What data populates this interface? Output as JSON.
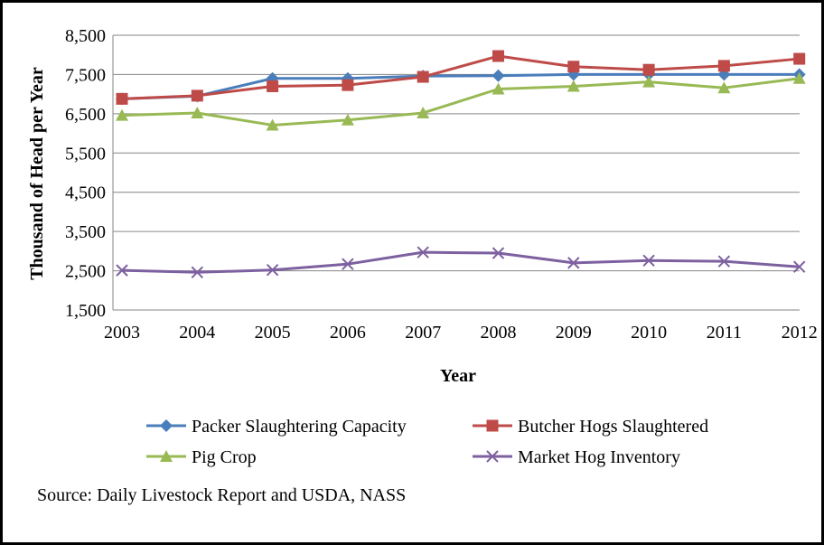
{
  "chart_data": {
    "type": "line",
    "title": "",
    "xlabel": "Year",
    "ylabel": "Thousand of Head per Year",
    "ylim": [
      1500,
      8500
    ],
    "yticks": [
      1500,
      2500,
      3500,
      4500,
      5500,
      6500,
      7500,
      8500
    ],
    "ytick_labels": [
      "1,500",
      "2,500",
      "3,500",
      "4,500",
      "5,500",
      "6,500",
      "7,500",
      "8,500"
    ],
    "x": [
      "2003",
      "2004",
      "2005",
      "2006",
      "2007",
      "2008",
      "2009",
      "2010",
      "2011",
      "2012"
    ],
    "grid": "horizontal",
    "legend_position": "bottom",
    "series": [
      {
        "name": "Packer Slaughtering Capacity",
        "color": "#4a7ebb",
        "marker": "diamond",
        "values": [
          6880,
          6950,
          7400,
          7400,
          7460,
          7470,
          7500,
          7500,
          7500,
          7500
        ]
      },
      {
        "name": "Butcher Hogs Slaughtered",
        "color": "#be4b48",
        "marker": "square",
        "values": [
          6880,
          6960,
          7200,
          7230,
          7440,
          7970,
          7700,
          7620,
          7720,
          7900
        ]
      },
      {
        "name": "Pig Crop",
        "color": "#98b954",
        "marker": "triangle",
        "values": [
          6460,
          6520,
          6210,
          6340,
          6520,
          7130,
          7200,
          7310,
          7160,
          7400
        ]
      },
      {
        "name": "Market Hog Inventory",
        "color": "#7d60a0",
        "marker": "x",
        "values": [
          2510,
          2460,
          2520,
          2670,
          2970,
          2950,
          2700,
          2760,
          2740,
          2600
        ]
      }
    ]
  },
  "source": "Source: Daily Livestock Report and USDA, NASS"
}
